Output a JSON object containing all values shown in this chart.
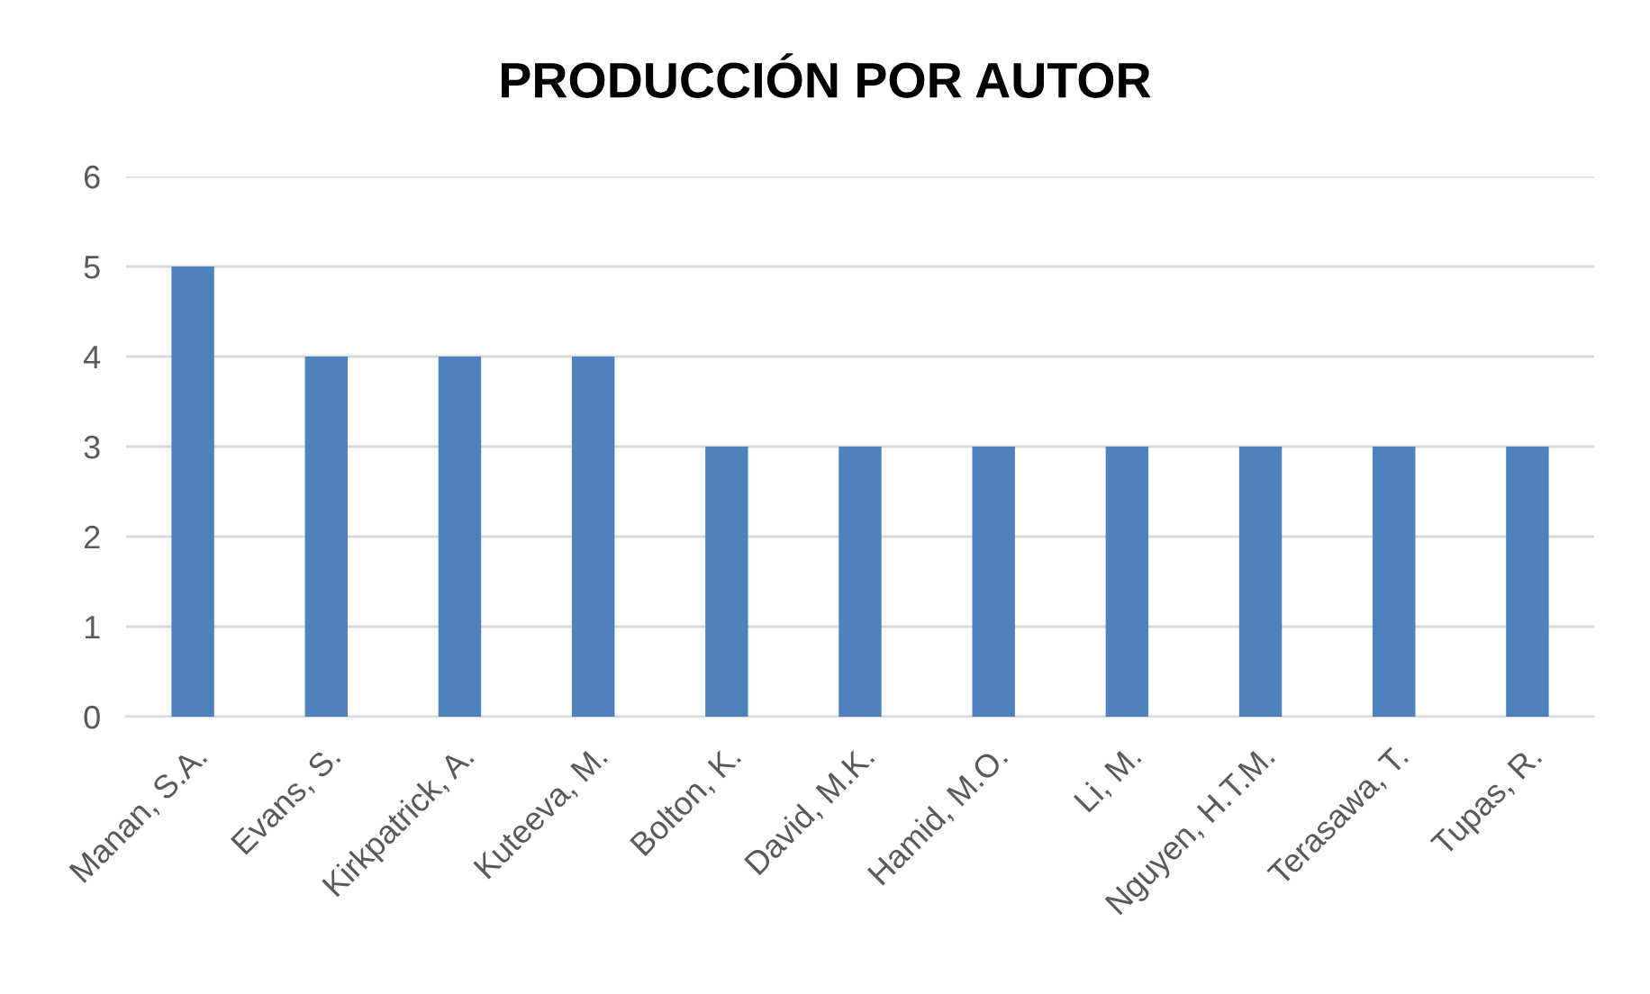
{
  "chart_data": {
    "type": "bar",
    "title": "PRODUCCIÓN POR AUTOR",
    "categories": [
      "Manan, S.A.",
      "Evans, S.",
      "Kirkpatrick, A.",
      "Kuteeva, M.",
      "Bolton, K.",
      "David, M.K.",
      "Hamid, M.O.",
      "Li, M.",
      "Nguyen, H.T.M.",
      "Terasawa, T.",
      "Tupas, R."
    ],
    "values": [
      5,
      4,
      4,
      4,
      3,
      3,
      3,
      3,
      3,
      3,
      3
    ],
    "color": "#4f81bd",
    "ylim": [
      0,
      6
    ],
    "yticks": [
      0,
      1,
      2,
      3,
      4,
      5,
      6
    ],
    "grid": "y"
  }
}
